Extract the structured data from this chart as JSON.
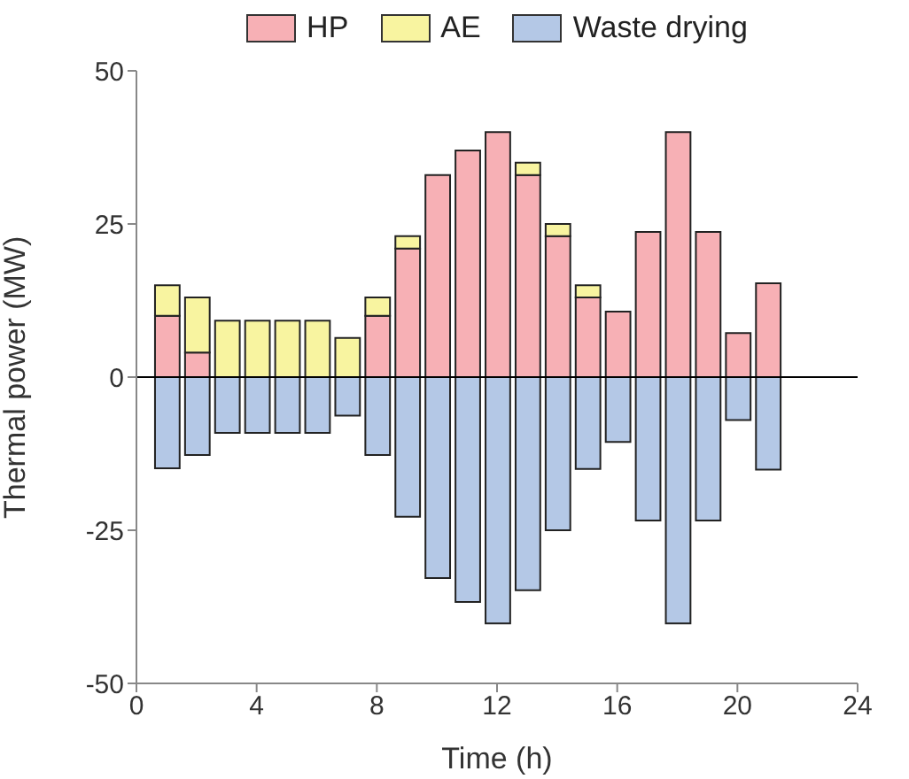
{
  "chart_data": {
    "type": "bar",
    "stacked": true,
    "xlabel": "Time (h)",
    "ylabel": "Thermal power (MW)",
    "x": [
      1,
      2,
      3,
      4,
      5,
      6,
      7,
      8,
      9,
      10,
      11,
      12,
      13,
      14,
      15,
      16,
      17,
      18,
      19,
      20,
      21
    ],
    "series": [
      {
        "name": "HP",
        "color": "#f7b0b5",
        "values": [
          10,
          4,
          0,
          0,
          0,
          0,
          0,
          10,
          21,
          33,
          37,
          40,
          33,
          23,
          13,
          10.7,
          23.7,
          40,
          23.7,
          7.2,
          15.3
        ]
      },
      {
        "name": "AE",
        "color": "#f8f4a0",
        "values": [
          5,
          9,
          9.2,
          9.2,
          9.2,
          9.2,
          6.4,
          3,
          2,
          0,
          0,
          0,
          2,
          2,
          2,
          0,
          0,
          0,
          0,
          0,
          0
        ]
      },
      {
        "name": "Waste drying",
        "color": "#b4c8e6",
        "values": [
          -14.9,
          -12.7,
          -9.1,
          -9.1,
          -9.1,
          -9.1,
          -6.3,
          -12.7,
          -22.8,
          -32.8,
          -36.7,
          -40.2,
          -34.8,
          -25,
          -15,
          -10.6,
          -23.4,
          -40.2,
          -23.4,
          -7,
          -15.1
        ]
      }
    ],
    "xlim": [
      0,
      24
    ],
    "xticks": [
      0,
      4,
      8,
      12,
      16,
      20,
      24
    ],
    "ylim": [
      -50,
      50
    ],
    "yticks": [
      -50,
      -25,
      0,
      25,
      50
    ],
    "ref_lines": [
      {
        "axis": "y",
        "value": 0,
        "color": "#000000"
      }
    ],
    "grid": false,
    "legend": "top"
  }
}
